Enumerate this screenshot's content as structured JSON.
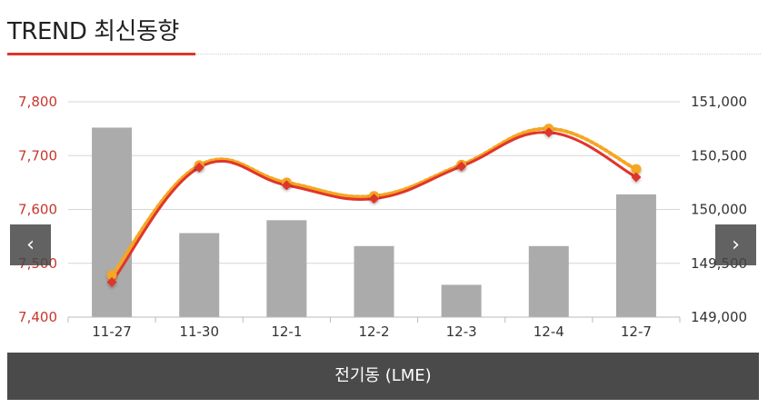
{
  "header": {
    "title": "TREND 최신동향"
  },
  "footer": {
    "label": "전기동 (LME)"
  },
  "nav": {
    "prev_symbol": "‹",
    "next_symbol": "›"
  },
  "colors": {
    "accent": "#e0352b",
    "bar": "#ababab",
    "line_red": "#e0352b",
    "line_orange": "#f5a623",
    "footer_bg": "#4a4a4a"
  },
  "chart_data": {
    "type": "bar+line",
    "categories": [
      "11-27",
      "11-30",
      "12-1",
      "12-2",
      "12-3",
      "12-4",
      "12-7"
    ],
    "left_axis": {
      "ticks": [
        "7,800",
        "7,700",
        "7,600",
        "7,500",
        "7,400"
      ],
      "range": [
        7400,
        7800
      ]
    },
    "right_axis": {
      "ticks": [
        "151,000",
        "150,500",
        "150,000",
        "149,500",
        "149,000"
      ],
      "range": [
        149000,
        151000
      ]
    },
    "bars": {
      "axis": "right",
      "values": [
        150760,
        149780,
        149900,
        149660,
        149300,
        149660,
        150140
      ]
    },
    "lines": [
      {
        "axis": "left",
        "style": "dotted",
        "color": "#f5a623",
        "marker": "circle",
        "values": [
          7478,
          7682,
          7650,
          7625,
          7683,
          7750,
          7675
        ]
      },
      {
        "axis": "left",
        "style": "solid",
        "color": "#e0352b",
        "marker": "diamond",
        "values": [
          7465,
          7678,
          7645,
          7620,
          7680,
          7743,
          7660
        ]
      }
    ],
    "grid": true
  }
}
